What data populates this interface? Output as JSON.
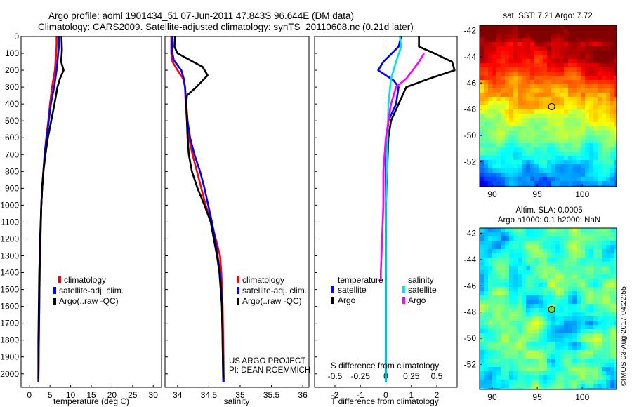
{
  "header": {
    "line1": "Argo profile: aoml 1901434_51 07-Jun-2011 47.843S 96.644E (DM data)",
    "line2": "Climatology: CARS2009. Satellite-adjusted climatology: synTS_20110608.nc (0.21d later)"
  },
  "colors": {
    "climatology": "#ff0000",
    "satellite": "#0000ff",
    "argo": "#000000",
    "sal_satellite": "#00e5e5",
    "sal_argo": "#ff00ff"
  },
  "chart_data": [
    {
      "type": "line",
      "title": "",
      "xlabel": "temperature (deg C)",
      "ylabel": "",
      "xlim": [
        -2,
        32
      ],
      "ylim": [
        2080,
        0
      ],
      "xticks": [
        0,
        5,
        10,
        15,
        20,
        25,
        30
      ],
      "yticks": [
        0,
        100,
        200,
        300,
        400,
        500,
        600,
        700,
        800,
        900,
        1000,
        1100,
        1200,
        1300,
        1400,
        1500,
        1600,
        1700,
        1800,
        1900,
        2000
      ],
      "legend": {
        "position": "lower-center",
        "entries": [
          "climatology",
          "satellite-adj. clim.",
          "Argo(..raw -QC)"
        ]
      },
      "series": [
        {
          "name": "climatology",
          "color": "#ff0000",
          "points": [
            [
              6.6,
              0
            ],
            [
              6.6,
              50
            ],
            [
              6.5,
              100
            ],
            [
              6.2,
              200
            ],
            [
              5.5,
              300
            ],
            [
              5.0,
              400
            ],
            [
              4.6,
              500
            ],
            [
              4.1,
              600
            ],
            [
              3.7,
              700
            ],
            [
              3.4,
              800
            ],
            [
              3.1,
              900
            ],
            [
              2.9,
              1000
            ],
            [
              2.7,
              1200
            ],
            [
              2.5,
              1400
            ],
            [
              2.4,
              1600
            ],
            [
              2.3,
              1800
            ],
            [
              2.2,
              2050
            ]
          ]
        },
        {
          "name": "satellite-adj. clim.",
          "color": "#0000ff",
          "points": [
            [
              7.2,
              0
            ],
            [
              7.2,
              50
            ],
            [
              7.0,
              100
            ],
            [
              6.6,
              200
            ],
            [
              6.0,
              300
            ],
            [
              5.2,
              400
            ],
            [
              4.7,
              500
            ],
            [
              4.2,
              600
            ],
            [
              3.7,
              700
            ],
            [
              3.4,
              800
            ],
            [
              3.1,
              900
            ],
            [
              2.9,
              1000
            ],
            [
              2.7,
              1200
            ],
            [
              2.5,
              1400
            ],
            [
              2.4,
              1600
            ],
            [
              2.3,
              1800
            ],
            [
              2.2,
              2050
            ]
          ]
        },
        {
          "name": "Argo(..raw -QC)",
          "color": "#000000",
          "points": [
            [
              7.8,
              0
            ],
            [
              7.9,
              80
            ],
            [
              7.7,
              150
            ],
            [
              8.3,
              200
            ],
            [
              7.4,
              250
            ],
            [
              6.8,
              300
            ],
            [
              6.1,
              400
            ],
            [
              5.3,
              500
            ],
            [
              4.5,
              600
            ],
            [
              3.9,
              700
            ],
            [
              3.4,
              800
            ],
            [
              3.1,
              900
            ],
            [
              2.9,
              1000
            ],
            [
              2.6,
              1200
            ],
            [
              2.4,
              1400
            ],
            [
              2.3,
              1600
            ],
            [
              2.2,
              1800
            ],
            [
              2.2,
              2030
            ]
          ]
        }
      ]
    },
    {
      "type": "line",
      "title": "",
      "xlabel": "salinity",
      "ylabel": "",
      "xlim": [
        33.8,
        36.1
      ],
      "ylim": [
        2080,
        0
      ],
      "xticks": [
        34,
        34.5,
        35,
        35.5,
        36
      ],
      "legend": {
        "position": "lower-right",
        "entries": [
          "climatology",
          "satellite-adj. clim.",
          "Argo(..raw -QC)"
        ]
      },
      "annotations": [
        "US ARGO PROJECT",
        "PI: DEAN ROEMMICH"
      ],
      "series": [
        {
          "name": "climatology",
          "color": "#ff0000",
          "points": [
            [
              33.9,
              0
            ],
            [
              33.9,
              100
            ],
            [
              33.92,
              150
            ],
            [
              34.0,
              200
            ],
            [
              34.09,
              250
            ],
            [
              34.12,
              300
            ],
            [
              34.13,
              400
            ],
            [
              34.15,
              500
            ],
            [
              34.18,
              600
            ],
            [
              34.24,
              700
            ],
            [
              34.31,
              800
            ],
            [
              34.38,
              900
            ],
            [
              34.45,
              1000
            ],
            [
              34.54,
              1100
            ],
            [
              34.61,
              1200
            ],
            [
              34.68,
              1300
            ],
            [
              34.7,
              1400
            ],
            [
              34.71,
              1500
            ],
            [
              34.72,
              1600
            ],
            [
              34.73,
              1800
            ],
            [
              34.74,
              2050
            ]
          ]
        },
        {
          "name": "satellite-adj. clim.",
          "color": "#0000ff",
          "points": [
            [
              33.92,
              0
            ],
            [
              33.91,
              80
            ],
            [
              33.94,
              140
            ],
            [
              34.06,
              200
            ],
            [
              34.1,
              250
            ],
            [
              34.12,
              300
            ],
            [
              34.14,
              400
            ],
            [
              34.16,
              500
            ],
            [
              34.2,
              600
            ],
            [
              34.27,
              700
            ],
            [
              34.36,
              800
            ],
            [
              34.43,
              900
            ],
            [
              34.49,
              1000
            ],
            [
              34.55,
              1100
            ],
            [
              34.6,
              1200
            ],
            [
              34.64,
              1300
            ],
            [
              34.68,
              1400
            ],
            [
              34.7,
              1500
            ],
            [
              34.71,
              1600
            ],
            [
              34.72,
              1800
            ],
            [
              34.73,
              2050
            ]
          ]
        },
        {
          "name": "Argo(..raw -QC)",
          "color": "#000000",
          "points": [
            [
              33.96,
              0
            ],
            [
              33.95,
              60
            ],
            [
              34.0,
              100
            ],
            [
              34.25,
              150
            ],
            [
              34.4,
              180
            ],
            [
              34.48,
              230
            ],
            [
              34.3,
              300
            ],
            [
              34.15,
              350
            ],
            [
              34.14,
              400
            ],
            [
              34.15,
              500
            ],
            [
              34.16,
              600
            ],
            [
              34.18,
              700
            ],
            [
              34.23,
              800
            ],
            [
              34.32,
              900
            ],
            [
              34.43,
              1000
            ],
            [
              34.53,
              1100
            ],
            [
              34.58,
              1200
            ],
            [
              34.63,
              1300
            ],
            [
              34.67,
              1400
            ],
            [
              34.69,
              1500
            ],
            [
              34.71,
              1600
            ],
            [
              34.72,
              1800
            ],
            [
              34.73,
              2030
            ]
          ]
        }
      ]
    },
    {
      "type": "line",
      "title": "",
      "xlabel": "T difference from climatology",
      "xlabel_top": "S difference from climatology",
      "ylabel": "",
      "xlim": [
        -2.8,
        2.8
      ],
      "ylim": [
        2080,
        0
      ],
      "xticks": [
        -2,
        -1,
        0,
        1,
        2
      ],
      "xticks_top": [
        "-0.5",
        "-0.25",
        "0",
        "0.25",
        "0.5"
      ],
      "legend": {
        "position": "lower-center",
        "temperature_header": "temperature",
        "salinity_header": "salinity",
        "entries": [
          "satellite",
          "Argo",
          "satellite",
          "Argo"
        ]
      },
      "series": [
        {
          "name": "satellite",
          "group": "temperature",
          "color": "#0000ff",
          "points": [
            [
              0.6,
              0
            ],
            [
              0.5,
              60
            ],
            [
              -0.1,
              150
            ],
            [
              -0.3,
              200
            ],
            [
              0.3,
              260
            ],
            [
              0.5,
              300
            ],
            [
              0.4,
              400
            ],
            [
              0.1,
              500
            ],
            [
              0.0,
              700
            ],
            [
              0.0,
              2050
            ]
          ]
        },
        {
          "name": "Argo",
          "group": "temperature",
          "color": "#000000",
          "points": [
            [
              1.3,
              0
            ],
            [
              1.3,
              60
            ],
            [
              1.9,
              100
            ],
            [
              2.6,
              150
            ],
            [
              2.7,
              200
            ],
            [
              1.7,
              250
            ],
            [
              0.8,
              300
            ],
            [
              0.5,
              400
            ],
            [
              0.2,
              500
            ],
            [
              0.1,
              600
            ],
            [
              0.05,
              800
            ],
            [
              0.0,
              1000
            ],
            [
              0.0,
              2050
            ]
          ]
        },
        {
          "name": "satellite",
          "group": "salinity",
          "color": "#00e5e5",
          "points": [
            [
              0.55,
              0
            ],
            [
              0.6,
              60
            ],
            [
              0.4,
              150
            ],
            [
              0.2,
              250
            ],
            [
              0.1,
              400
            ],
            [
              0.05,
              700
            ],
            [
              0.0,
              1000
            ],
            [
              0.0,
              2050
            ]
          ]
        },
        {
          "name": "Argo",
          "group": "salinity",
          "color": "#ff00ff",
          "points": [
            [
              1.5,
              100
            ],
            [
              1.3,
              150
            ],
            [
              0.8,
              250
            ],
            [
              0.4,
              300
            ],
            [
              0.2,
              400
            ],
            [
              0.1,
              500
            ],
            [
              0.0,
              600
            ],
            [
              -0.1,
              800
            ],
            [
              -0.1,
              1000
            ],
            [
              -0.15,
              1200
            ],
            [
              -0.2,
              1400
            ],
            [
              -0.2,
              1450
            ]
          ]
        }
      ]
    },
    {
      "type": "heatmap",
      "title": "sat. SST: 7.21 Argo: 7.72",
      "xticks": [
        90,
        95,
        100
      ],
      "yticks": [
        -42,
        -44,
        -46,
        -48,
        -50,
        -52
      ],
      "marker": {
        "lon": 96.6,
        "lat": -47.8
      }
    },
    {
      "type": "heatmap",
      "title": "Altim. SLA: 0.0005",
      "subtitle": "Argo h1000: 0.1 h2000: NaN",
      "xticks": [
        90,
        95,
        100
      ],
      "yticks": [
        -42,
        -44,
        -46,
        -48,
        -50,
        -52
      ],
      "marker": {
        "lon": 96.6,
        "lat": -47.8
      }
    }
  ],
  "footer": {
    "stamp": "©IMOS 03-Aug-2017 04:22:55"
  }
}
